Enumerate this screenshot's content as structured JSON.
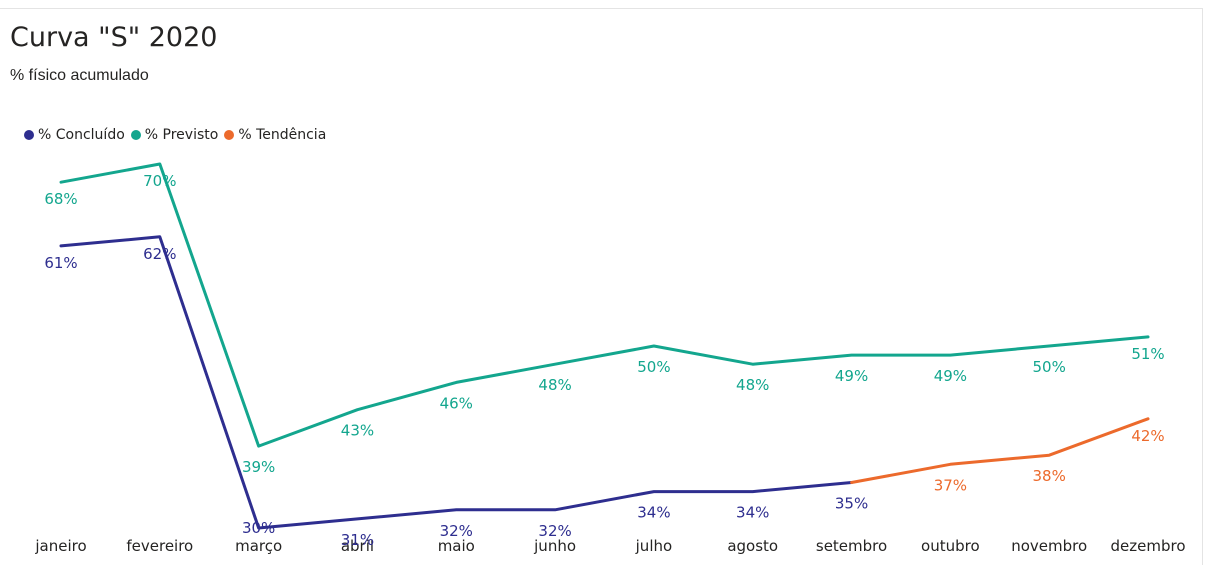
{
  "title": "Curva \"S\" 2020",
  "subtitle": "% físico acumulado",
  "legend": [
    {
      "label": "% Concluído",
      "color": "#2e2e8f"
    },
    {
      "label": "% Previsto",
      "color": "#13a68e"
    },
    {
      "label": "% Tendência",
      "color": "#ec6a2c"
    }
  ],
  "chart_data": {
    "type": "line",
    "title": "Curva \"S\" 2020",
    "subtitle": "% físico acumulado",
    "categories": [
      "janeiro",
      "fevereiro",
      "março",
      "abril",
      "maio",
      "junho",
      "julho",
      "agosto",
      "setembro",
      "outubro",
      "novembro",
      "dezembro"
    ],
    "value_unit": "%",
    "series": [
      {
        "name": "% Concluído",
        "color": "#2e2e8f",
        "values": [
          61,
          62,
          30,
          31,
          32,
          32,
          34,
          34,
          35,
          null,
          null,
          null
        ]
      },
      {
        "name": "% Previsto",
        "color": "#13a68e",
        "values": [
          68,
          70,
          39,
          43,
          46,
          48,
          50,
          48,
          49,
          49,
          50,
          51
        ]
      },
      {
        "name": "% Tendência",
        "color": "#ec6a2c",
        "values": [
          null,
          null,
          null,
          null,
          null,
          null,
          null,
          null,
          35,
          37,
          38,
          42
        ]
      }
    ],
    "ylim": [
      30,
      70
    ],
    "grid": false,
    "legend_position": "top-left",
    "data_labels": true
  }
}
